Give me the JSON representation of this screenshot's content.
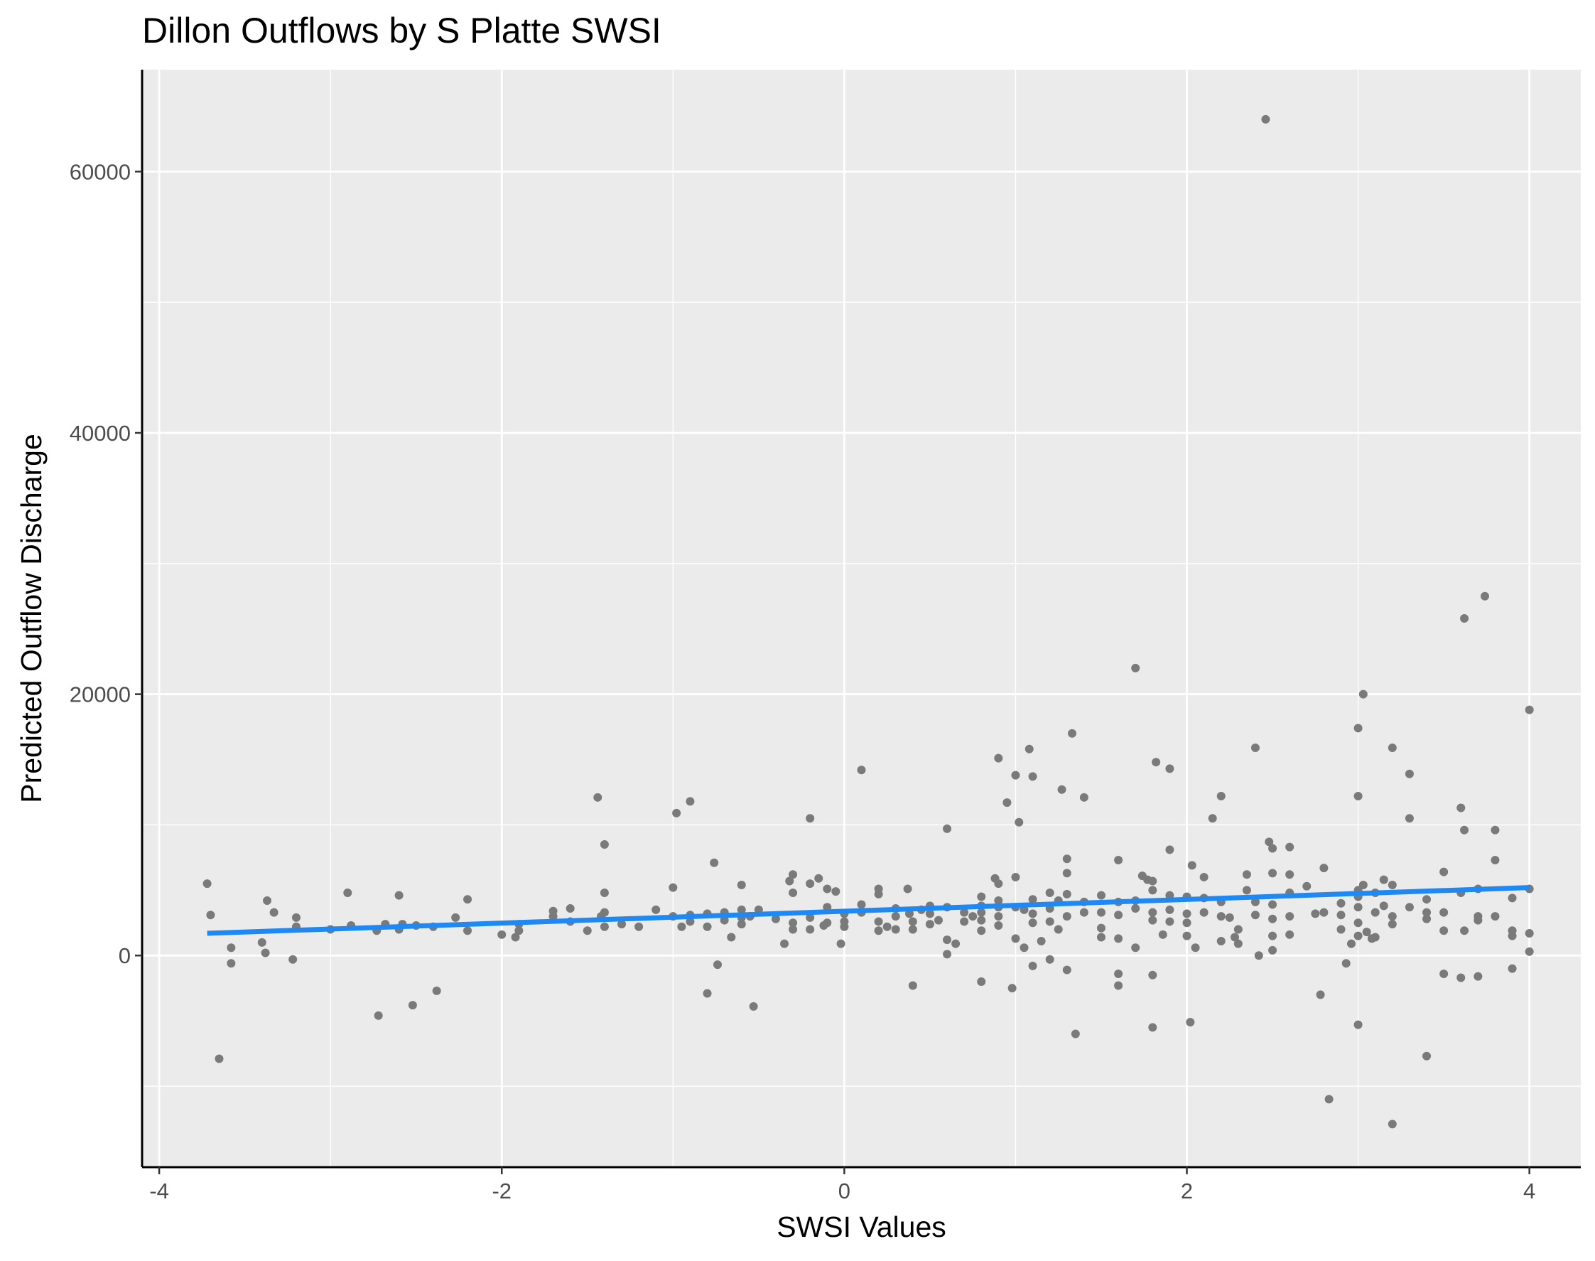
{
  "chart_data": {
    "type": "scatter",
    "title": "Dillon Outflows by S Platte SWSI",
    "xlabel": "SWSI Values",
    "ylabel": "Predicted Outflow Discharge",
    "xlim": [
      -4.1,
      4.3
    ],
    "ylim": [
      -16200,
      67800
    ],
    "xticks": [
      -4,
      -2,
      0,
      2,
      4
    ],
    "yticks": [
      0,
      20000,
      40000,
      60000
    ],
    "grid": true,
    "point_color": "#7a7a7a",
    "line_color": "#1e88f5",
    "panel_color": "#ebebeb",
    "trend_line": {
      "x": [
        -3.72,
        4.0
      ],
      "y": [
        1700,
        5200
      ]
    },
    "points": [
      [
        -3.72,
        5500
      ],
      [
        -3.7,
        3100
      ],
      [
        -3.65,
        -7900
      ],
      [
        -3.58,
        600
      ],
      [
        -3.58,
        -600
      ],
      [
        -3.4,
        1000
      ],
      [
        -3.38,
        200
      ],
      [
        -3.37,
        4200
      ],
      [
        -3.33,
        3300
      ],
      [
        -3.22,
        -300
      ],
      [
        -3.2,
        2900
      ],
      [
        -3.2,
        2200
      ],
      [
        -3.0,
        2000
      ],
      [
        -2.9,
        4800
      ],
      [
        -2.88,
        2300
      ],
      [
        -2.73,
        1900
      ],
      [
        -2.72,
        -4600
      ],
      [
        -2.68,
        2400
      ],
      [
        -2.6,
        4600
      ],
      [
        -2.6,
        2000
      ],
      [
        -2.58,
        2400
      ],
      [
        -2.52,
        -3800
      ],
      [
        -2.5,
        2300
      ],
      [
        -2.4,
        2200
      ],
      [
        -2.38,
        -2700
      ],
      [
        -2.27,
        2900
      ],
      [
        -2.2,
        4300
      ],
      [
        -2.2,
        1900
      ],
      [
        -2.0,
        1600
      ],
      [
        -1.92,
        1400
      ],
      [
        -1.9,
        2400
      ],
      [
        -1.9,
        1900
      ],
      [
        -1.7,
        3400
      ],
      [
        -1.7,
        3000
      ],
      [
        -1.6,
        2600
      ],
      [
        -1.6,
        3600
      ],
      [
        -1.5,
        1900
      ],
      [
        -1.44,
        12100
      ],
      [
        -1.42,
        3000
      ],
      [
        -1.4,
        8500
      ],
      [
        -1.4,
        4800
      ],
      [
        -1.4,
        3300
      ],
      [
        -1.4,
        2200
      ],
      [
        -1.3,
        2400
      ],
      [
        -1.2,
        2200
      ],
      [
        -1.1,
        3500
      ],
      [
        -1.0,
        5200
      ],
      [
        -1.0,
        3000
      ],
      [
        -0.98,
        10900
      ],
      [
        -0.95,
        2200
      ],
      [
        -0.9,
        11800
      ],
      [
        -0.9,
        3100
      ],
      [
        -0.9,
        2600
      ],
      [
        -0.8,
        3200
      ],
      [
        -0.8,
        2200
      ],
      [
        -0.8,
        -2900
      ],
      [
        -0.76,
        7100
      ],
      [
        -0.74,
        -700
      ],
      [
        -0.7,
        3300
      ],
      [
        -0.7,
        2700
      ],
      [
        -0.66,
        1400
      ],
      [
        -0.6,
        5400
      ],
      [
        -0.6,
        3500
      ],
      [
        -0.6,
        2900
      ],
      [
        -0.6,
        2400
      ],
      [
        -0.55,
        3000
      ],
      [
        -0.53,
        -3900
      ],
      [
        -0.5,
        3500
      ],
      [
        -0.4,
        2800
      ],
      [
        -0.35,
        900
      ],
      [
        -0.32,
        5700
      ],
      [
        -0.3,
        6200
      ],
      [
        -0.3,
        4800
      ],
      [
        -0.3,
        2500
      ],
      [
        -0.3,
        2000
      ],
      [
        -0.2,
        10500
      ],
      [
        -0.2,
        5500
      ],
      [
        -0.2,
        2900
      ],
      [
        -0.2,
        2000
      ],
      [
        -0.15,
        5900
      ],
      [
        -0.12,
        2300
      ],
      [
        -0.1,
        5100
      ],
      [
        -0.1,
        3700
      ],
      [
        -0.1,
        2500
      ],
      [
        -0.05,
        4900
      ],
      [
        -0.02,
        900
      ],
      [
        0.0,
        3200
      ],
      [
        0.0,
        2600
      ],
      [
        0.0,
        2200
      ],
      [
        0.1,
        14200
      ],
      [
        0.1,
        3900
      ],
      [
        0.1,
        3300
      ],
      [
        0.2,
        5100
      ],
      [
        0.2,
        4700
      ],
      [
        0.2,
        2600
      ],
      [
        0.2,
        1900
      ],
      [
        0.25,
        2200
      ],
      [
        0.3,
        3600
      ],
      [
        0.3,
        3000
      ],
      [
        0.3,
        2000
      ],
      [
        0.37,
        5100
      ],
      [
        0.38,
        3200
      ],
      [
        0.4,
        -2300
      ],
      [
        0.4,
        2600
      ],
      [
        0.4,
        2000
      ],
      [
        0.45,
        3500
      ],
      [
        0.5,
        3800
      ],
      [
        0.5,
        3200
      ],
      [
        0.5,
        2400
      ],
      [
        0.55,
        2700
      ],
      [
        0.6,
        9700
      ],
      [
        0.6,
        3700
      ],
      [
        0.6,
        1200
      ],
      [
        0.6,
        100
      ],
      [
        0.65,
        900
      ],
      [
        0.7,
        3300
      ],
      [
        0.7,
        2600
      ],
      [
        0.75,
        3000
      ],
      [
        0.8,
        4500
      ],
      [
        0.8,
        3800
      ],
      [
        0.8,
        3300
      ],
      [
        0.8,
        2700
      ],
      [
        0.8,
        1900
      ],
      [
        0.8,
        -2000
      ],
      [
        0.88,
        5900
      ],
      [
        0.9,
        15100
      ],
      [
        0.9,
        5500
      ],
      [
        0.9,
        4200
      ],
      [
        0.9,
        3700
      ],
      [
        0.9,
        3000
      ],
      [
        0.9,
        2300
      ],
      [
        0.95,
        11700
      ],
      [
        0.98,
        -2500
      ],
      [
        1.0,
        13800
      ],
      [
        1.0,
        6000
      ],
      [
        1.0,
        3700
      ],
      [
        1.0,
        1300
      ],
      [
        1.02,
        10200
      ],
      [
        1.05,
        3500
      ],
      [
        1.05,
        600
      ],
      [
        1.08,
        15800
      ],
      [
        1.1,
        13700
      ],
      [
        1.1,
        4300
      ],
      [
        1.1,
        3200
      ],
      [
        1.1,
        2500
      ],
      [
        1.1,
        -800
      ],
      [
        1.15,
        1100
      ],
      [
        1.2,
        4800
      ],
      [
        1.2,
        3600
      ],
      [
        1.2,
        2600
      ],
      [
        1.2,
        -300
      ],
      [
        1.25,
        4200
      ],
      [
        1.25,
        2000
      ],
      [
        1.27,
        12700
      ],
      [
        1.3,
        7400
      ],
      [
        1.3,
        6300
      ],
      [
        1.3,
        4700
      ],
      [
        1.3,
        3000
      ],
      [
        1.3,
        -1100
      ],
      [
        1.33,
        17000
      ],
      [
        1.35,
        -6000
      ],
      [
        1.4,
        12100
      ],
      [
        1.4,
        4100
      ],
      [
        1.4,
        3300
      ],
      [
        1.5,
        4600
      ],
      [
        1.5,
        3300
      ],
      [
        1.5,
        2100
      ],
      [
        1.5,
        1400
      ],
      [
        1.6,
        7300
      ],
      [
        1.6,
        4100
      ],
      [
        1.6,
        3100
      ],
      [
        1.6,
        1300
      ],
      [
        1.6,
        -1400
      ],
      [
        1.6,
        -2300
      ],
      [
        1.7,
        22000
      ],
      [
        1.7,
        4200
      ],
      [
        1.7,
        3600
      ],
      [
        1.7,
        600
      ],
      [
        1.74,
        6100
      ],
      [
        1.77,
        5800
      ],
      [
        1.8,
        5700
      ],
      [
        1.8,
        5000
      ],
      [
        1.8,
        3300
      ],
      [
        1.8,
        2700
      ],
      [
        1.8,
        -5500
      ],
      [
        1.8,
        -1500
      ],
      [
        1.82,
        14800
      ],
      [
        1.86,
        1600
      ],
      [
        1.9,
        14300
      ],
      [
        1.9,
        8100
      ],
      [
        1.9,
        4600
      ],
      [
        1.9,
        3500
      ],
      [
        1.9,
        2600
      ],
      [
        2.0,
        4500
      ],
      [
        2.0,
        3200
      ],
      [
        2.0,
        2500
      ],
      [
        2.0,
        1500
      ],
      [
        2.02,
        -5100
      ],
      [
        2.03,
        6900
      ],
      [
        2.05,
        600
      ],
      [
        2.1,
        6000
      ],
      [
        2.1,
        4400
      ],
      [
        2.1,
        3300
      ],
      [
        2.15,
        10500
      ],
      [
        2.2,
        12200
      ],
      [
        2.2,
        4100
      ],
      [
        2.2,
        3000
      ],
      [
        2.2,
        1100
      ],
      [
        2.25,
        2900
      ],
      [
        2.28,
        1400
      ],
      [
        2.3,
        2000
      ],
      [
        2.3,
        900
      ],
      [
        2.35,
        6200
      ],
      [
        2.35,
        5000
      ],
      [
        2.4,
        15900
      ],
      [
        2.4,
        4100
      ],
      [
        2.4,
        3100
      ],
      [
        2.42,
        0
      ],
      [
        2.46,
        64000
      ],
      [
        2.48,
        8700
      ],
      [
        2.5,
        8200
      ],
      [
        2.5,
        6300
      ],
      [
        2.5,
        3900
      ],
      [
        2.5,
        2800
      ],
      [
        2.5,
        1500
      ],
      [
        2.5,
        400
      ],
      [
        2.6,
        8300
      ],
      [
        2.6,
        6200
      ],
      [
        2.6,
        4800
      ],
      [
        2.6,
        3000
      ],
      [
        2.6,
        1600
      ],
      [
        2.7,
        5300
      ],
      [
        2.75,
        3200
      ],
      [
        2.78,
        -3000
      ],
      [
        2.8,
        6700
      ],
      [
        2.8,
        3300
      ],
      [
        2.83,
        -11000
      ],
      [
        2.9,
        4000
      ],
      [
        2.9,
        3100
      ],
      [
        2.9,
        2000
      ],
      [
        2.93,
        -600
      ],
      [
        2.96,
        900
      ],
      [
        3.0,
        17400
      ],
      [
        3.0,
        12200
      ],
      [
        3.0,
        5000
      ],
      [
        3.0,
        4500
      ],
      [
        3.0,
        3700
      ],
      [
        3.0,
        2500
      ],
      [
        3.0,
        1500
      ],
      [
        3.0,
        -5300
      ],
      [
        3.03,
        20000
      ],
      [
        3.03,
        5400
      ],
      [
        3.05,
        1800
      ],
      [
        3.08,
        1300
      ],
      [
        3.1,
        4800
      ],
      [
        3.1,
        3300
      ],
      [
        3.1,
        1400
      ],
      [
        3.15,
        5800
      ],
      [
        3.15,
        3800
      ],
      [
        3.2,
        15900
      ],
      [
        3.2,
        5400
      ],
      [
        3.2,
        3000
      ],
      [
        3.2,
        2400
      ],
      [
        3.2,
        -12900
      ],
      [
        3.3,
        13900
      ],
      [
        3.3,
        10500
      ],
      [
        3.3,
        3700
      ],
      [
        3.4,
        4300
      ],
      [
        3.4,
        3300
      ],
      [
        3.4,
        2800
      ],
      [
        3.4,
        -7700
      ],
      [
        3.5,
        6400
      ],
      [
        3.5,
        3300
      ],
      [
        3.5,
        1900
      ],
      [
        3.5,
        -1400
      ],
      [
        3.6,
        11300
      ],
      [
        3.6,
        4800
      ],
      [
        3.6,
        -1700
      ],
      [
        3.62,
        25800
      ],
      [
        3.62,
        9600
      ],
      [
        3.62,
        1900
      ],
      [
        3.7,
        5100
      ],
      [
        3.7,
        3000
      ],
      [
        3.7,
        2700
      ],
      [
        3.7,
        -1600
      ],
      [
        3.74,
        27500
      ],
      [
        3.8,
        9600
      ],
      [
        3.8,
        7300
      ],
      [
        3.8,
        3000
      ],
      [
        3.9,
        4400
      ],
      [
        3.9,
        1900
      ],
      [
        3.9,
        1500
      ],
      [
        3.9,
        -1000
      ],
      [
        4.0,
        18800
      ],
      [
        4.0,
        5100
      ],
      [
        4.0,
        1700
      ],
      [
        4.0,
        300
      ]
    ]
  }
}
